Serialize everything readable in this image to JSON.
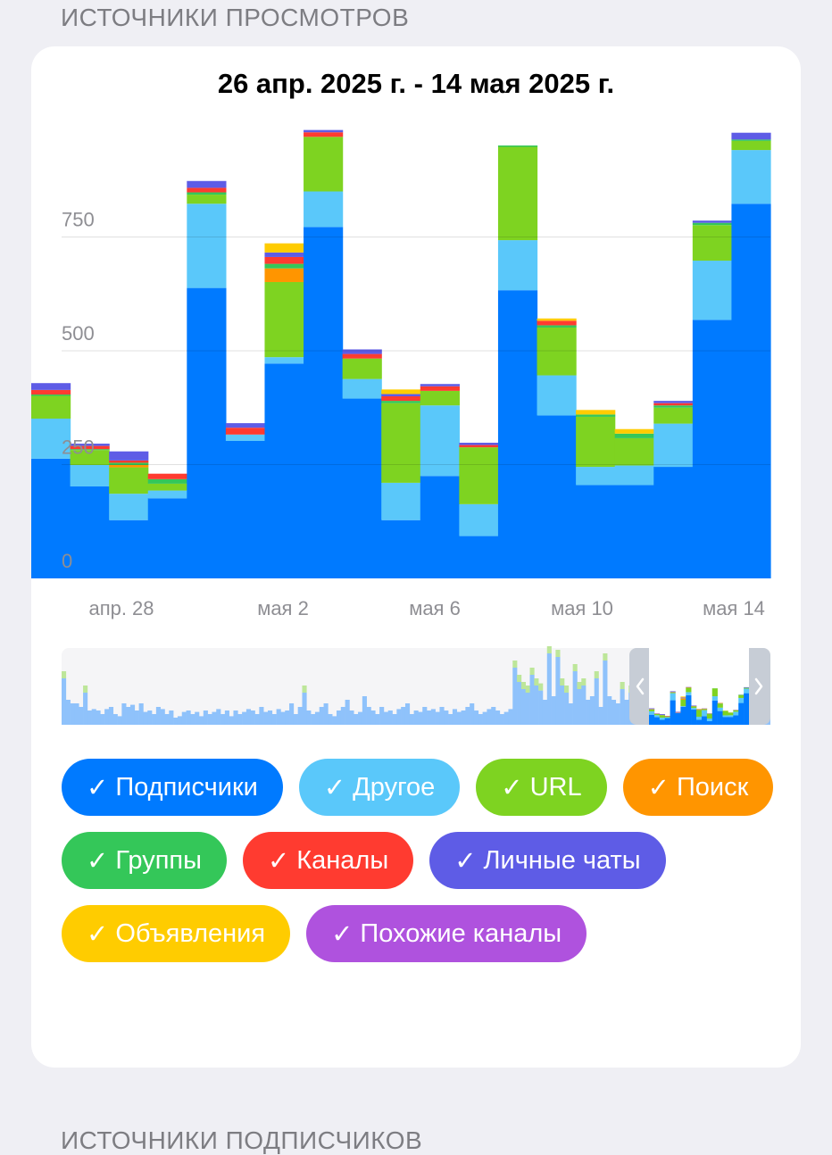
{
  "section_title": "ИСТОЧНИКИ ПРОСМОТРОВ",
  "next_section_title": "ИСТОЧНИКИ ПОДПИСЧИКОВ",
  "check_glyph": "✓",
  "chart_data": {
    "type": "bar",
    "stacked": true,
    "title": "26 апр. 2025 г. - 14 мая 2025 г.",
    "categories": [
      "26.04",
      "27.04",
      "28.04",
      "29.04",
      "30.04",
      "01.05",
      "02.05",
      "03.05",
      "04.05",
      "05.05",
      "06.05",
      "07.05",
      "08.05",
      "09.05",
      "10.05",
      "11.05",
      "12.05",
      "13.05",
      "14.05"
    ],
    "x_tick_labels": [
      "апр. 28",
      "мая 2",
      "мая 6",
      "мая 10",
      "мая 14"
    ],
    "y_tick_labels": [
      "0",
      "250",
      "500",
      "750"
    ],
    "ylim": [
      0,
      1000
    ],
    "grid": true,
    "series": [
      {
        "name": "Подписчики",
        "color": "#007aff",
        "values": [
          263,
          202,
          128,
          176,
          638,
          302,
          472,
          772,
          395,
          128,
          225,
          93,
          633,
          358,
          205,
          205,
          245,
          568,
          823
        ]
      },
      {
        "name": "Другое",
        "color": "#5ac8fa",
        "values": [
          88,
          47,
          58,
          17,
          185,
          14,
          14,
          78,
          43,
          82,
          155,
          70,
          110,
          88,
          40,
          43,
          95,
          130,
          118
        ]
      },
      {
        "name": "URL",
        "color": "#7ed321",
        "values": [
          50,
          33,
          58,
          15,
          20,
          0,
          165,
          120,
          45,
          175,
          32,
          125,
          205,
          105,
          110,
          60,
          35,
          78,
          20
        ]
      },
      {
        "name": "Поиск",
        "color": "#ff9500",
        "values": [
          0,
          0,
          5,
          0,
          0,
          0,
          30,
          0,
          0,
          0,
          0,
          0,
          0,
          0,
          0,
          0,
          0,
          0,
          0
        ]
      },
      {
        "name": "Группы",
        "color": "#34c759",
        "values": [
          3,
          2,
          5,
          10,
          5,
          0,
          10,
          0,
          0,
          5,
          0,
          0,
          3,
          5,
          5,
          10,
          5,
          5,
          3
        ]
      },
      {
        "name": "Каналы",
        "color": "#ff3b30",
        "values": [
          10,
          7,
          5,
          12,
          10,
          15,
          15,
          10,
          10,
          10,
          10,
          5,
          0,
          10,
          0,
          0,
          5,
          0,
          0
        ]
      },
      {
        "name": "Личные чаты",
        "color": "#5e5ce6",
        "values": [
          15,
          5,
          20,
          0,
          15,
          10,
          10,
          5,
          10,
          5,
          5,
          5,
          0,
          0,
          0,
          0,
          5,
          5,
          15
        ]
      },
      {
        "name": "Объявления",
        "color": "#ffcc00",
        "values": [
          0,
          0,
          0,
          0,
          0,
          0,
          20,
          0,
          0,
          10,
          0,
          0,
          0,
          5,
          10,
          10,
          0,
          0,
          0
        ]
      },
      {
        "name": "Похожие каналы",
        "color": "#af52de",
        "values": [
          0,
          0,
          0,
          0,
          0,
          0,
          0,
          0,
          0,
          0,
          0,
          0,
          0,
          0,
          0,
          0,
          0,
          0,
          0
        ]
      }
    ]
  },
  "overview_values": [
    65,
    35,
    30,
    30,
    25,
    45,
    20,
    22,
    20,
    15,
    22,
    25,
    15,
    12,
    30,
    25,
    28,
    20,
    30,
    18,
    20,
    15,
    25,
    22,
    15,
    20,
    10,
    12,
    18,
    20,
    15,
    18,
    12,
    20,
    15,
    18,
    22,
    15,
    20,
    12,
    20,
    15,
    18,
    22,
    20,
    15,
    25,
    18,
    20,
    15,
    22,
    18,
    20,
    30,
    15,
    25,
    45,
    20,
    15,
    18,
    25,
    30,
    15,
    12,
    20,
    25,
    35,
    20,
    15,
    18,
    40,
    25,
    20,
    15,
    25,
    18,
    20,
    15,
    22,
    25,
    30,
    15,
    20,
    18,
    25,
    20,
    22,
    18,
    25,
    20,
    15,
    22,
    18,
    20,
    25,
    30,
    20,
    15,
    18,
    22,
    25,
    20,
    15,
    18,
    22,
    80,
    60,
    50,
    45,
    70,
    55,
    48,
    35,
    120,
    40,
    95,
    55,
    45,
    30,
    75,
    50,
    55,
    35,
    40,
    65,
    25,
    90,
    40,
    35,
    30,
    50,
    35,
    45,
    25,
    20,
    35,
    60,
    30,
    25,
    40,
    20,
    25,
    35,
    30,
    22,
    30,
    40,
    25,
    35,
    20,
    28,
    25,
    20,
    30,
    35,
    45,
    25,
    55,
    40,
    45,
    30,
    70,
    35,
    25,
    40
  ],
  "legend": [
    {
      "label": "Подписчики",
      "color": "#007aff"
    },
    {
      "label": "Другое",
      "color": "#5ac8fa"
    },
    {
      "label": "URL",
      "color": "#7ed321"
    },
    {
      "label": "Поиск",
      "color": "#ff9500"
    },
    {
      "label": "Группы",
      "color": "#34c759"
    },
    {
      "label": "Каналы",
      "color": "#ff3b30"
    },
    {
      "label": "Личные чаты",
      "color": "#5e5ce6"
    },
    {
      "label": "Объявления",
      "color": "#ffcc00"
    },
    {
      "label": "Похожие каналы",
      "color": "#af52de"
    }
  ]
}
